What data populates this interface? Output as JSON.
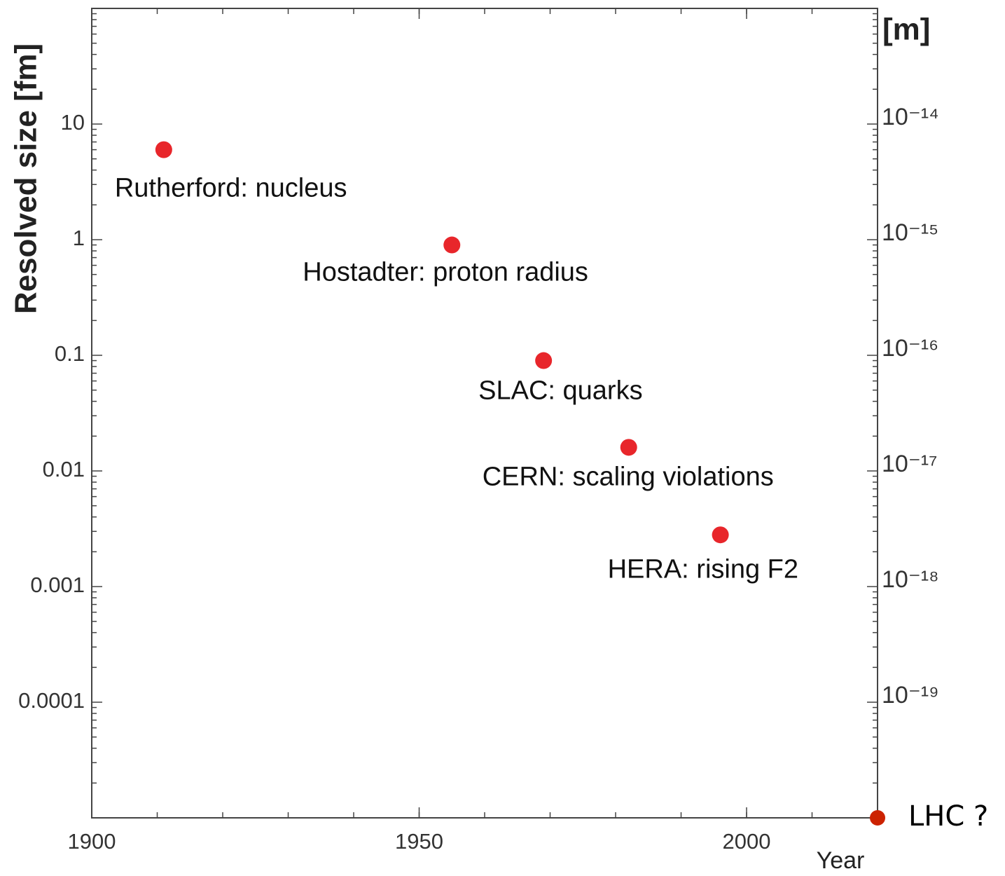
{
  "chart_data": {
    "type": "scatter",
    "ylabel": "Resolved size [fm]",
    "y2label": "[m]",
    "xlabel": "Year",
    "xlim": [
      1900,
      2020
    ],
    "xticks": [
      1900,
      1950,
      2000
    ],
    "ylim": [
      1e-05,
      100
    ],
    "yticks": [
      10,
      1,
      0.1,
      0.01,
      0.001,
      0.0001
    ],
    "y_log": true,
    "y2lim": [
      1e-20,
      1e-13
    ],
    "y2ticks": [
      {
        "value": 1e-14,
        "label": "10⁻¹⁴"
      },
      {
        "value": 1e-15,
        "label": "10⁻¹⁵"
      },
      {
        "value": 1e-16,
        "label": "10⁻¹⁶"
      },
      {
        "value": 1e-17,
        "label": "10⁻¹⁷"
      },
      {
        "value": 1e-18,
        "label": "10⁻¹⁸"
      },
      {
        "value": 1e-19,
        "label": "10⁻¹⁹"
      }
    ],
    "series": [
      {
        "color": "#e8262b",
        "x": [
          1911,
          1955,
          1969,
          1982,
          1996
        ],
        "values": [
          6,
          0.9,
          0.09,
          0.016,
          0.0028
        ],
        "labels": [
          "Rutherford: nucleus",
          "Hostadter: proton radius",
          "SLAC: quarks",
          "CERN: scaling violations",
          "HERA: rising F2"
        ]
      },
      {
        "color": "#cc2200",
        "x": [
          2020
        ],
        "values": [
          1e-05
        ],
        "labels": [
          "LHC ?"
        ]
      }
    ]
  }
}
